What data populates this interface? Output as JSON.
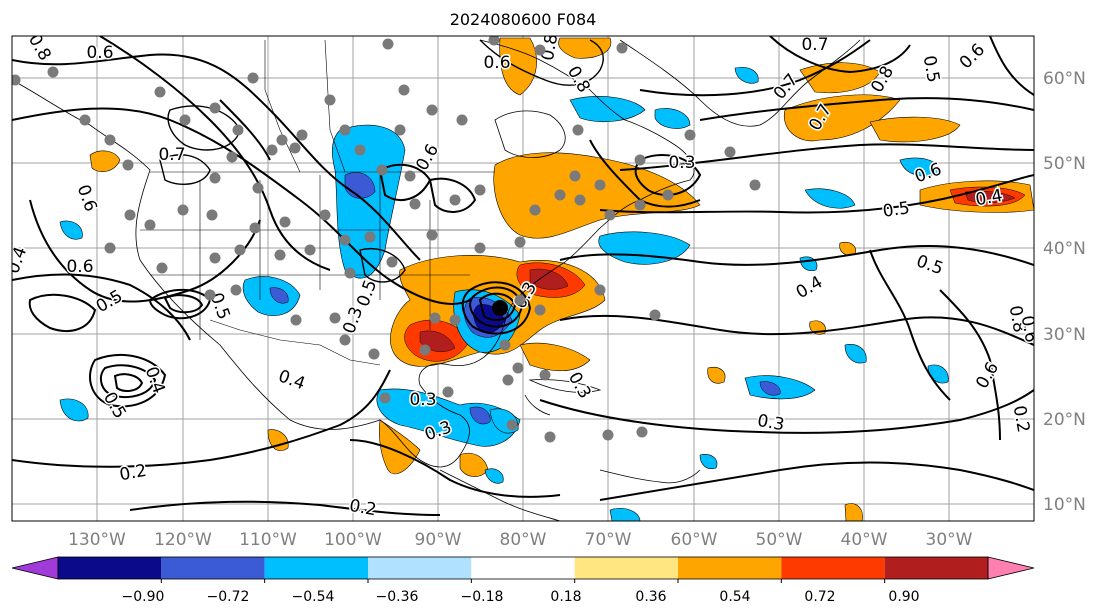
{
  "title": "2024080600 F084",
  "lon_labels": [
    "130°W",
    "120°W",
    "110°W",
    "100°W",
    "90°W",
    "80°W",
    "70°W",
    "60°W",
    "50°W",
    "40°W",
    "30°W"
  ],
  "lat_labels": [
    "60°N",
    "50°N",
    "40°N",
    "30°N",
    "20°N",
    "10°N"
  ],
  "contour_labels": [
    {
      "id": "c1",
      "text": "0.6"
    },
    {
      "id": "c2",
      "text": "0.8"
    },
    {
      "id": "c3",
      "text": "0.6"
    },
    {
      "id": "c4",
      "text": "0.7"
    },
    {
      "id": "c5",
      "text": "0.8"
    },
    {
      "id": "c6",
      "text": "0.6"
    },
    {
      "id": "c7",
      "text": "0.7"
    },
    {
      "id": "c8",
      "text": "0.8"
    },
    {
      "id": "c9",
      "text": "0.7"
    },
    {
      "id": "c10",
      "text": "0.5"
    },
    {
      "id": "c11",
      "text": "0.8"
    },
    {
      "id": "c12",
      "text": "0.6"
    },
    {
      "id": "c13",
      "text": "0.7"
    },
    {
      "id": "c14",
      "text": "0.4"
    },
    {
      "id": "c15",
      "text": "0.6"
    },
    {
      "id": "c16",
      "text": "0.5"
    },
    {
      "id": "c17",
      "text": "0.4"
    },
    {
      "id": "c18",
      "text": "0.5"
    },
    {
      "id": "c19",
      "text": "0.4"
    },
    {
      "id": "c20",
      "text": "0.6"
    },
    {
      "id": "c21",
      "text": "0.3"
    },
    {
      "id": "c22",
      "text": "0.3"
    },
    {
      "id": "c23",
      "text": "0.3"
    },
    {
      "id": "c24",
      "text": "0.2"
    },
    {
      "id": "c25",
      "text": "0.3"
    },
    {
      "id": "c26",
      "text": "0.3"
    },
    {
      "id": "c27",
      "text": "0.5"
    },
    {
      "id": "c28",
      "text": "0.6"
    },
    {
      "id": "c29",
      "text": "0.4"
    },
    {
      "id": "c30",
      "text": "0.5"
    },
    {
      "id": "c31",
      "text": "0.5"
    },
    {
      "id": "c32",
      "text": "0.4"
    },
    {
      "id": "c33",
      "text": "0.3"
    },
    {
      "id": "c34",
      "text": "0.6"
    },
    {
      "id": "c35",
      "text": "0.2"
    },
    {
      "id": "c36",
      "text": "0.2"
    },
    {
      "id": "c37",
      "text": "0.8"
    },
    {
      "id": "c38",
      "text": "0.6"
    },
    {
      "id": "c39",
      "text": "0.5"
    },
    {
      "id": "c40",
      "text": "0.3"
    }
  ],
  "colorbar": {
    "ticks": [
      "−0.90",
      "−0.72",
      "−0.54",
      "−0.36",
      "−0.18",
      "0.18",
      "0.36",
      "0.54",
      "0.72",
      "0.90"
    ],
    "colors": [
      "#a03ad8",
      "#0a0a8a",
      "#3a5ad6",
      "#00bfff",
      "#b0e2ff",
      "#ffffff",
      "#ffe680",
      "#ffa500",
      "#ff3a00",
      "#b01e1e",
      "#ff80b0"
    ]
  }
}
